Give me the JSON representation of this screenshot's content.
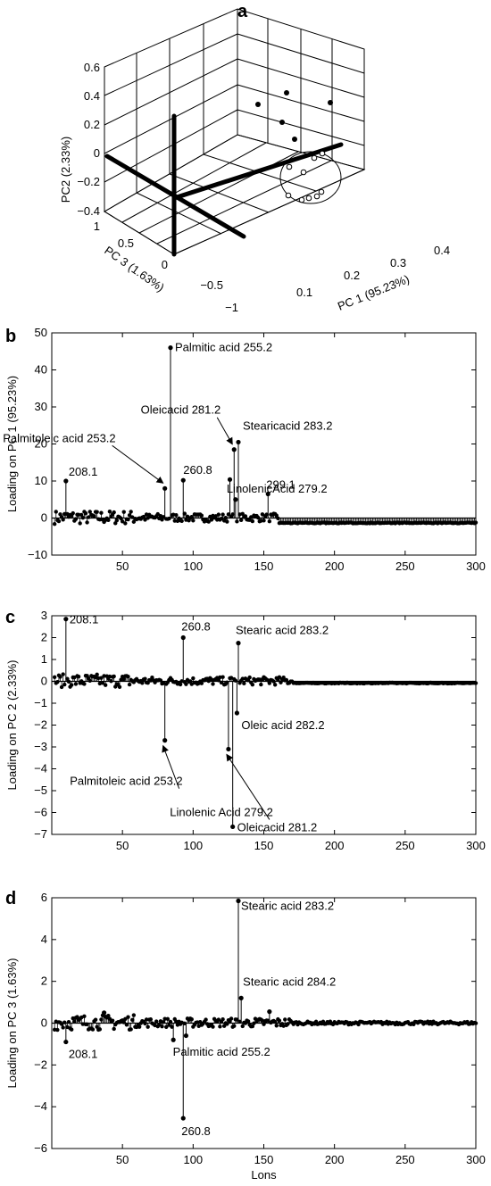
{
  "chart_data": [
    {
      "panel": "a",
      "type": "scatter",
      "xlabel": "PC 1 (95.23%)",
      "ylabel": "PC 3 (1.63%)",
      "zlabel": "PC2 (2.33%)",
      "xticks": [
        "0.1",
        "0.2",
        "0.3",
        "0.4"
      ],
      "yticks": [
        "1",
        "0.5",
        "0",
        "−0.5",
        "−1"
      ],
      "zticks": [
        "0.6",
        "0.4",
        "0.2",
        "0",
        "−0.2",
        "−0.4"
      ],
      "xlim": [
        0.05,
        0.4
      ],
      "ylim": [
        -1,
        1
      ],
      "zlim": [
        -0.4,
        0.6
      ],
      "grid": true,
      "series": [
        {
          "marker": "filled",
          "points": [
            [
              0.18,
              0.5,
              0.35
            ],
            [
              0.26,
              0.3,
              0.4
            ],
            [
              0.2,
              0.4,
              0.2
            ],
            [
              0.3,
              0.1,
              0.3
            ],
            [
              0.25,
              -0.1,
              0.05
            ]
          ]
        },
        {
          "marker": "open",
          "points": [
            [
              0.28,
              -0.2,
              -0.1
            ],
            [
              0.3,
              -0.3,
              -0.05
            ],
            [
              0.27,
              -0.4,
              -0.2
            ],
            [
              0.24,
              -0.5,
              -0.3
            ],
            [
              0.27,
              -0.5,
              -0.35
            ],
            [
              0.29,
              -0.55,
              -0.3
            ],
            [
              0.31,
              -0.5,
              -0.32
            ],
            [
              0.32,
              -0.6,
              -0.25
            ]
          ]
        }
      ]
    },
    {
      "panel": "b",
      "type": "scatter",
      "ylabel": "Loading on PC 1 (95.23%)",
      "xlim": [
        0,
        300
      ],
      "ylim": [
        -10,
        50
      ],
      "xticks": [
        50,
        100,
        150,
        200,
        250,
        300
      ],
      "yticks": [
        -10,
        0,
        10,
        20,
        30,
        40,
        50
      ],
      "peaks": [
        [
          10,
          10
        ],
        [
          80,
          8
        ],
        [
          84,
          46
        ],
        [
          93,
          10.2
        ],
        [
          126,
          10.4
        ],
        [
          129,
          18.5
        ],
        [
          132,
          20.5
        ],
        [
          130,
          5
        ],
        [
          153,
          6.5
        ]
      ],
      "annotations": [
        {
          "text": "208.1",
          "x": 10,
          "y": 10
        },
        {
          "text": "Palmitic acid 255.2",
          "x": 84,
          "y": 46
        },
        {
          "text": "260.8",
          "x": 93,
          "y": 10.2
        },
        {
          "text": "Palmitoleic acid 253.2",
          "x": 80,
          "y": 8
        },
        {
          "text": "Oleicacid 281.2",
          "x": 129,
          "y": 18.5
        },
        {
          "text": "Stearicacid 283.2",
          "x": 132,
          "y": 20.5
        },
        {
          "text": "LinolenicAcid 279.2",
          "x": 130,
          "y": 5
        },
        {
          "text": "299.1",
          "x": 153,
          "y": 6.5
        }
      ]
    },
    {
      "panel": "c",
      "type": "scatter",
      "ylabel": "Loading on PC 2 (2.33%)",
      "xlim": [
        0,
        300
      ],
      "ylim": [
        -7,
        3
      ],
      "xticks": [
        50,
        100,
        150,
        200,
        250,
        300
      ],
      "yticks": [
        -7,
        -6,
        -5,
        -4,
        -3,
        -2,
        -1,
        0,
        1,
        2,
        3
      ],
      "peaks": [
        [
          10,
          2.85
        ],
        [
          93,
          2.0
        ],
        [
          132,
          1.75
        ],
        [
          80,
          -2.7
        ],
        [
          125,
          -3.1
        ],
        [
          128,
          -6.65
        ],
        [
          131,
          -1.45
        ]
      ],
      "annotations": [
        {
          "text": "208.1",
          "x": 10,
          "y": 2.85
        },
        {
          "text": "260.8",
          "x": 93,
          "y": 2.0
        },
        {
          "text": "Stearic acid 283.2",
          "x": 132,
          "y": 1.75
        },
        {
          "text": "Oleic acid 282.2",
          "x": 131,
          "y": -1.45
        },
        {
          "text": "Palmitoleic acid 253.2",
          "x": 80,
          "y": -2.7
        },
        {
          "text": "Linolenic Acid 279.2",
          "x": 125,
          "y": -3.1
        },
        {
          "text": "Oleicacid 281.2",
          "x": 128,
          "y": -6.65
        }
      ]
    },
    {
      "panel": "d",
      "type": "scatter",
      "ylabel": "Loading on PC 3 (1.63%)",
      "xlabel": "Lons",
      "xlim": [
        0,
        300
      ],
      "ylim": [
        -6,
        6
      ],
      "xticks": [
        50,
        100,
        150,
        200,
        250,
        300
      ],
      "yticks": [
        -6,
        -4,
        -2,
        0,
        2,
        4,
        6
      ],
      "peaks": [
        [
          10,
          -0.9
        ],
        [
          93,
          -4.55
        ],
        [
          132,
          5.85
        ],
        [
          134,
          1.2
        ],
        [
          154,
          0.55
        ],
        [
          37,
          0.5
        ],
        [
          86,
          -0.8
        ],
        [
          95,
          -0.6
        ]
      ],
      "annotations": [
        {
          "text": "208.1",
          "x": 10,
          "y": -0.9
        },
        {
          "text": "Palmitic acid 255.2",
          "x": 92,
          "y": -0.8
        },
        {
          "text": "260.8",
          "x": 93,
          "y": -4.55
        },
        {
          "text": "Stearic acid 283.2",
          "x": 132,
          "y": 5.85
        },
        {
          "text": "Stearic acid 284.2",
          "x": 134,
          "y": 1.2
        }
      ]
    }
  ]
}
